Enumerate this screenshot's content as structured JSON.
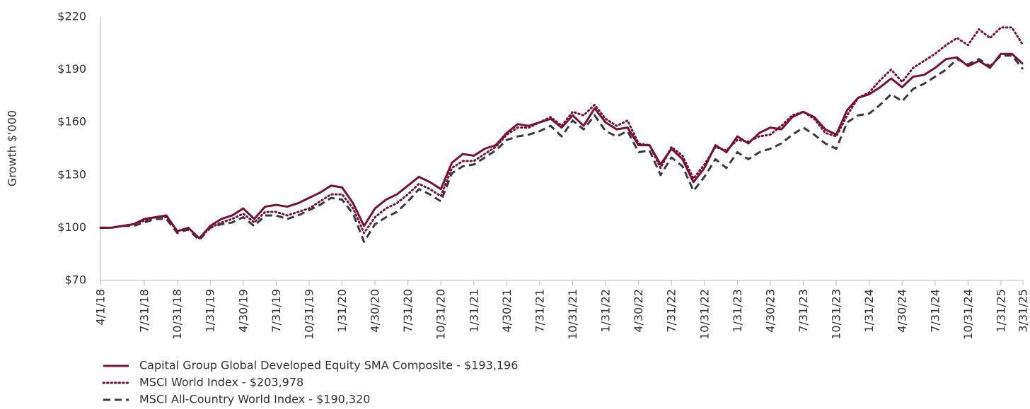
{
  "chart_data": {
    "type": "line",
    "y_label": "Growth $'000",
    "categories": [
      "4/1/18",
      null,
      null,
      null,
      "7/31/18",
      null,
      null,
      "10/31/18",
      null,
      null,
      "1/31/19",
      null,
      null,
      "4/30/19",
      null,
      null,
      "7/31/19",
      null,
      null,
      "10/31/19",
      null,
      null,
      "1/31/20",
      null,
      null,
      "4/30/20",
      null,
      null,
      "7/31/20",
      null,
      null,
      "10/31/20",
      null,
      null,
      "1/31/21",
      null,
      null,
      "4/30/21",
      null,
      null,
      "7/31/21",
      null,
      null,
      "10/31/21",
      null,
      null,
      "1/31/22",
      null,
      null,
      "4/30/22",
      null,
      null,
      "7/31/22",
      null,
      null,
      "10/31/22",
      null,
      null,
      "1/31/23",
      null,
      null,
      "4/30/23",
      null,
      null,
      "7/31/23",
      null,
      null,
      "10/31/23",
      null,
      null,
      "1/31/24",
      null,
      null,
      "4/30/24",
      null,
      null,
      "7/31/24",
      null,
      null,
      "10/31/24",
      null,
      null,
      "1/31/25",
      null,
      "3/31/25"
    ],
    "series": [
      {
        "name": "Capital Group Global Developed Equity SMA Composite - $193,196",
        "color": "#7a1034",
        "dash": "solid",
        "values": [
          100,
          100,
          101,
          102,
          105,
          106,
          107,
          98,
          100,
          94,
          101,
          105,
          107,
          111,
          105,
          112,
          113,
          112,
          114,
          117,
          120,
          124,
          123,
          114,
          101,
          111,
          116,
          119,
          124,
          129,
          126,
          122,
          137,
          142,
          141,
          145,
          147,
          154,
          159,
          158,
          160,
          162,
          157,
          164,
          158,
          168,
          160,
          156,
          157,
          147,
          147,
          136,
          145,
          139,
          126,
          134,
          147,
          143,
          152,
          148,
          154,
          157,
          156,
          163,
          166,
          163,
          156,
          153,
          167,
          174,
          176,
          180,
          185,
          180,
          186,
          187,
          191,
          196,
          197,
          192,
          195,
          191,
          199,
          199,
          193.196
        ]
      },
      {
        "name": "MSCI World Index - $203,978",
        "color": "#7a1034",
        "dash": "dotted",
        "values": [
          100,
          100,
          101,
          102,
          104,
          106,
          106,
          98,
          100,
          94,
          100,
          103,
          105,
          108,
          103,
          109,
          109,
          107,
          109,
          111,
          115,
          119,
          119,
          111,
          97,
          106,
          111,
          114,
          119,
          125,
          122,
          118,
          134,
          138,
          138,
          142,
          146,
          153,
          157,
          157,
          160,
          163,
          158,
          166,
          164,
          170,
          162,
          158,
          161,
          148,
          147,
          134,
          146,
          141,
          128,
          136,
          146,
          144,
          150,
          149,
          152,
          153,
          158,
          164,
          166,
          162,
          154,
          152,
          164,
          174,
          177,
          184,
          190,
          183,
          191,
          195,
          199,
          204,
          208,
          204,
          213,
          208,
          214,
          214,
          203.978
        ]
      },
      {
        "name": "MSCI All-Country World Index - $190,320",
        "color": "#3a3a3a",
        "dash": "dashed",
        "values": [
          100,
          100,
          101,
          101,
          103,
          105,
          105,
          97,
          99,
          93,
          100,
          102,
          103,
          106,
          101,
          107,
          107,
          105,
          107,
          110,
          113,
          117,
          116,
          108,
          92,
          102,
          106,
          109,
          115,
          122,
          119,
          115,
          131,
          135,
          136,
          140,
          144,
          150,
          152,
          153,
          155,
          158,
          152,
          161,
          156,
          164,
          155,
          152,
          155,
          143,
          144,
          130,
          140,
          135,
          121,
          129,
          139,
          134,
          143,
          139,
          143,
          145,
          148,
          153,
          157,
          153,
          148,
          145,
          160,
          164,
          165,
          170,
          176,
          172,
          179,
          182,
          186,
          190,
          196,
          193,
          196,
          192,
          198,
          198,
          190.32
        ]
      }
    ],
    "ylim": [
      70,
      220
    ],
    "yticks": [
      {
        "value": 70,
        "label": "$70"
      },
      {
        "value": 100,
        "label": "$100"
      },
      {
        "value": 130,
        "label": "$130"
      },
      {
        "value": 160,
        "label": "$160"
      },
      {
        "value": 190,
        "label": "$190"
      },
      {
        "value": 220,
        "label": "$220"
      }
    ]
  }
}
